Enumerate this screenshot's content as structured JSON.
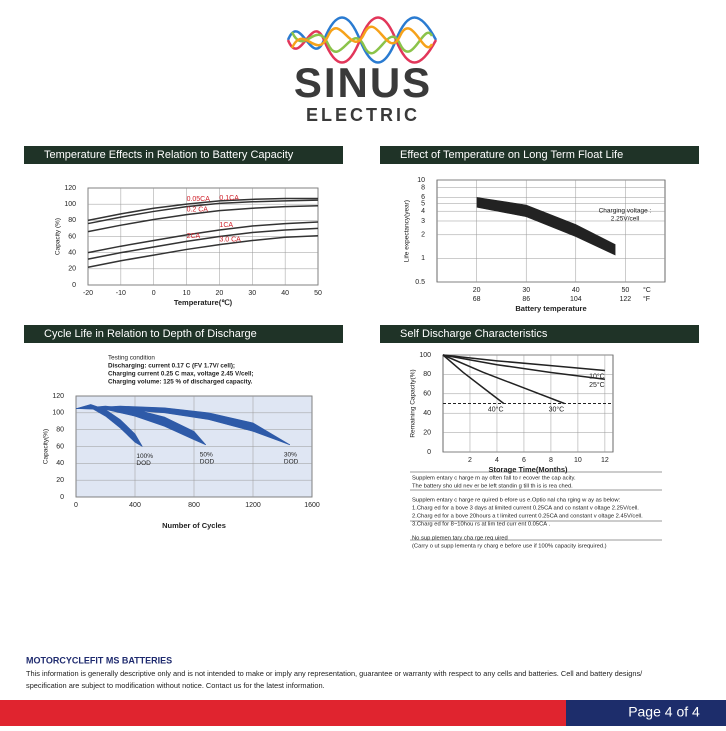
{
  "header": {
    "brand": "SINUS",
    "subbrand": "ELECTRIC"
  },
  "panels": [
    {
      "title": "Temperature Effects in Relation to Battery Capacity",
      "xlabel": "Temperature(℃)",
      "ylabel": "Capacity (%)",
      "xlim": [
        -20,
        50
      ],
      "xticks": [
        -20,
        -10,
        0,
        10,
        20,
        30,
        40,
        50
      ],
      "ylim": [
        0,
        120
      ],
      "yticks": [
        0,
        20,
        40,
        60,
        80,
        100,
        120
      ],
      "grid": true,
      "log_y": false,
      "series": [
        {
          "name": "0.05CA",
          "color": "#333333",
          "x": [
            -20,
            -10,
            0,
            10,
            20,
            30,
            40,
            50
          ],
          "values": [
            80,
            88,
            95,
            100,
            104,
            106,
            107,
            107
          ]
        },
        {
          "name": "0.1CA",
          "color": "#333333",
          "x": [
            -20,
            -10,
            0,
            10,
            20,
            30,
            40,
            50
          ],
          "values": [
            76,
            84,
            91,
            97,
            101,
            103,
            104,
            105
          ]
        },
        {
          "name": "0.2 CA",
          "color": "#333333",
          "x": [
            -20,
            -10,
            0,
            10,
            20,
            30,
            40,
            50
          ],
          "values": [
            66,
            74,
            81,
            87,
            92,
            95,
            97,
            98
          ]
        },
        {
          "name": "1CA",
          "color": "#333333",
          "x": [
            -20,
            -10,
            0,
            10,
            20,
            30,
            40,
            50
          ],
          "values": [
            40,
            48,
            55,
            62,
            68,
            73,
            76,
            78
          ]
        },
        {
          "name": "2CA",
          "color": "#333333",
          "x": [
            -20,
            -10,
            0,
            10,
            20,
            30,
            40,
            50
          ],
          "values": [
            32,
            40,
            47,
            54,
            60,
            65,
            68,
            70
          ]
        },
        {
          "name": "3.0 CA",
          "color": "#333333",
          "x": [
            -20,
            -10,
            0,
            10,
            20,
            30,
            40,
            50
          ],
          "values": [
            22,
            30,
            37,
            44,
            50,
            55,
            59,
            61
          ]
        }
      ]
    },
    {
      "title": "Effect of Temperature on Long Term Float Life",
      "xlabel": "Battery temperature",
      "ylabel": "Life expectancy(year)",
      "xlim": [
        12,
        58
      ],
      "xticks": [
        20,
        30,
        40,
        50
      ],
      "xticks2": [
        {
          "value": 20,
          "label": "68"
        },
        {
          "value": 30,
          "label": "86"
        },
        {
          "value": 40,
          "label": "104"
        },
        {
          "value": 50,
          "label": "122"
        }
      ],
      "x_units": [
        "°C",
        "°F"
      ],
      "ylim": [
        0.5,
        10
      ],
      "yticks": [
        0.5,
        1,
        2,
        3,
        4,
        5,
        6,
        8,
        10
      ],
      "grid": true,
      "log_y": true,
      "note": [
        "Charging voltage :",
        "2.25V/cell"
      ],
      "bands": [
        {
          "color": "#222222",
          "x": [
            20,
            30,
            40,
            48
          ],
          "upper": [
            6,
            4.8,
            2.7,
            1.5
          ],
          "lower": [
            4.5,
            3.4,
            1.9,
            1.1
          ]
        }
      ]
    },
    {
      "title": "Cycle Life in Relation to Depth of Discharge",
      "xlabel": "Number of Cycles",
      "ylabel": "Capacity(%)",
      "xlim": [
        0,
        1600
      ],
      "xticks": [
        0,
        400,
        800,
        1200,
        1600
      ],
      "ylim": [
        0,
        120
      ],
      "yticks": [
        0,
        20,
        40,
        60,
        80,
        100,
        120
      ],
      "grid": true,
      "log_y": false,
      "conditions": [
        "Testing  condition",
        "Discharging: current  0.17 C  (FV  1.7V/ cell);",
        "Charging current  0.25 C  max,  voltage  2.45 V/cell;",
        "Charging volume: 125 % of discharged  capacity."
      ],
      "bands": [
        {
          "name": "100%",
          "sublabel": "DOD",
          "color": "#2e5aa8",
          "x": [
            0,
            100,
            200,
            300,
            400,
            450
          ],
          "upper": [
            105,
            110,
            104,
            92,
            75,
            60
          ],
          "lower": [
            105,
            106,
            96,
            82,
            65,
            60
          ]
        },
        {
          "name": "50%",
          "sublabel": "DOD",
          "color": "#2e5aa8",
          "x": [
            0,
            200,
            400,
            600,
            800,
            880
          ],
          "upper": [
            105,
            108,
            104,
            95,
            78,
            62
          ],
          "lower": [
            105,
            104,
            96,
            84,
            68,
            62
          ]
        },
        {
          "name": "30%",
          "sublabel": "DOD",
          "color": "#2e5aa8",
          "x": [
            0,
            300,
            600,
            900,
            1200,
            1450
          ],
          "upper": [
            105,
            108,
            106,
            100,
            88,
            62
          ],
          "lower": [
            105,
            104,
            100,
            92,
            78,
            62
          ]
        }
      ]
    },
    {
      "title": "Self Discharge Characteristics",
      "xlabel": "Storage Time(Months)",
      "ylabel": "Remaining Capacity(%)",
      "xlim": [
        0,
        12.6
      ],
      "xticks": [
        2,
        4,
        6,
        8,
        10,
        12
      ],
      "ylim": [
        0,
        100
      ],
      "yticks": [
        0,
        20,
        40,
        60,
        80,
        100
      ],
      "grid": true,
      "log_y": false,
      "threshold": 50,
      "series": [
        {
          "name": "10°C",
          "color": "#222222",
          "x": [
            0,
            4,
            8,
            12
          ],
          "values": [
            100,
            94,
            89,
            84
          ]
        },
        {
          "name": "25°C",
          "color": "#222222",
          "x": [
            0,
            4,
            8,
            12
          ],
          "values": [
            100,
            90,
            82,
            75
          ]
        },
        {
          "name": "30°C",
          "color": "#222222",
          "x": [
            0,
            3,
            6,
            9
          ],
          "values": [
            100,
            82,
            66,
            50
          ]
        },
        {
          "name": "40°C",
          "color": "#222222",
          "x": [
            0,
            1.5,
            3,
            4.5
          ],
          "values": [
            100,
            82,
            66,
            50
          ]
        }
      ],
      "notes": [
        "Supplem entary c harge m ay often  fall to r ecover  the cap acity.",
        "The battery sho uld nev er be  left  standin g till th is is rea ched.",
        "Supplem entary c harge re quired b efore us e.Optio nal cha rging w ay as below:",
        "1.Charg ed for a bove 3 days at  limited  current  0.25CA and co nstant v oltage 2.25V/cell.",
        "2.Charg ed for a bove 20hours a t limited  current  0.25CA and constant v oltage 2.45V/cell.",
        "3.Charg ed for 8~10hou rs at lim ted curr ent 0.05CA .",
        "No sup plemen tary cha rge req uired",
        "(Carry o ut supp lementa ry charg e before  use if 100% capacity isrequired.)"
      ]
    }
  ],
  "footer": {
    "title": "MOTORCYCLEFIT MS BATTERIES",
    "lines": [
      "This information is generally descriptive only and is not intended to make or imply any representation, guarantee or warranty with respect to any cells and batteries. Cell and battery designs/",
      "specification are subject to modification without notice. Contact us for the latest information."
    ],
    "page": "Page 4 of 4"
  }
}
